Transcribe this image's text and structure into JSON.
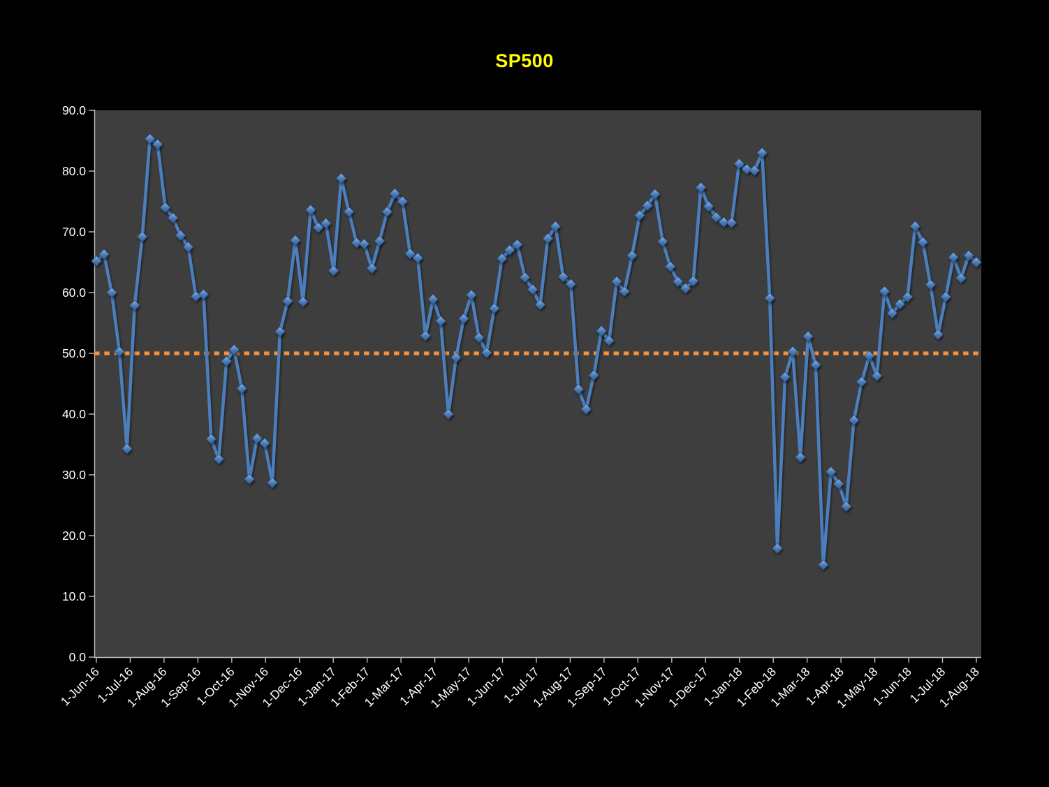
{
  "window": {
    "background": "#000000"
  },
  "chart_data": {
    "type": "line",
    "title": "SP500",
    "title_color": "#FFFF00",
    "plot_bg": "#3E3E3E",
    "axis_color": "#BFBFBF",
    "label_color": "#FFFFFF",
    "grid": false,
    "legend_position": "none",
    "marker": "diamond",
    "ylim": [
      0,
      90
    ],
    "y_tick_step": 10,
    "y_tick_labels": [
      "0.0",
      "10.0",
      "20.0",
      "30.0",
      "40.0",
      "50.0",
      "60.0",
      "70.0",
      "80.0",
      "90.0"
    ],
    "x_tick_labels": [
      "1-Jun-16",
      "1-Jul-16",
      "1-Aug-16",
      "1-Sep-16",
      "1-Oct-16",
      "1-Nov-16",
      "1-Dec-16",
      "1-Jan-17",
      "1-Feb-17",
      "1-Mar-17",
      "1-Apr-17",
      "1-May-17",
      "1-Jun-17",
      "1-Jul-17",
      "1-Aug-17",
      "1-Sep-17",
      "1-Oct-17",
      "1-Nov-17",
      "1-Dec-17",
      "1-Jan-18",
      "1-Feb-18",
      "1-Mar-18",
      "1-Apr-18",
      "1-May-18",
      "1-Jun-18",
      "1-Jul-18",
      "1-Aug-18"
    ],
    "reference_line": {
      "value": 50.0,
      "color": "#F5913E",
      "style": "dotted"
    },
    "series": [
      {
        "name": "SP500",
        "line_color": "#4B7EBC",
        "marker_color": "#4F81BD",
        "frequency": "weekly",
        "values": [
          65.2,
          66.3,
          60.0,
          50.3,
          34.3,
          57.9,
          69.2,
          85.3,
          84.4,
          74.0,
          72.3,
          69.4,
          67.5,
          59.4,
          59.7,
          35.9,
          32.6,
          48.7,
          50.6,
          44.2,
          29.3,
          36.0,
          35.2,
          28.7,
          53.6,
          58.6,
          68.6,
          58.5,
          73.6,
          70.7,
          71.4,
          63.6,
          78.8,
          73.3,
          68.2,
          68.0,
          64.0,
          68.5,
          73.3,
          76.3,
          75.0,
          66.4,
          65.7,
          52.9,
          58.9,
          55.3,
          40.0,
          49.3,
          55.7,
          59.6,
          52.6,
          50.1,
          57.4,
          65.6,
          67.0,
          67.9,
          62.5,
          60.5,
          58.0,
          68.9,
          70.9,
          62.6,
          61.4,
          44.1,
          40.8,
          46.4,
          53.7,
          52.1,
          61.8,
          60.2,
          66.1,
          72.7,
          74.3,
          76.2,
          68.4,
          64.3,
          61.8,
          60.7,
          61.9,
          77.3,
          74.2,
          72.4,
          71.6,
          71.5,
          81.2,
          80.3,
          80.1,
          83.0,
          59.1,
          17.9,
          46.1,
          50.3,
          32.9,
          52.8,
          48.1,
          15.2,
          30.5,
          28.5,
          24.8,
          39.0,
          45.3,
          49.6,
          46.3,
          60.2,
          56.6,
          58.1,
          59.3,
          70.9,
          68.3,
          61.3,
          53.1,
          59.3,
          65.8,
          62.4,
          66.1,
          65.0
        ]
      }
    ]
  }
}
